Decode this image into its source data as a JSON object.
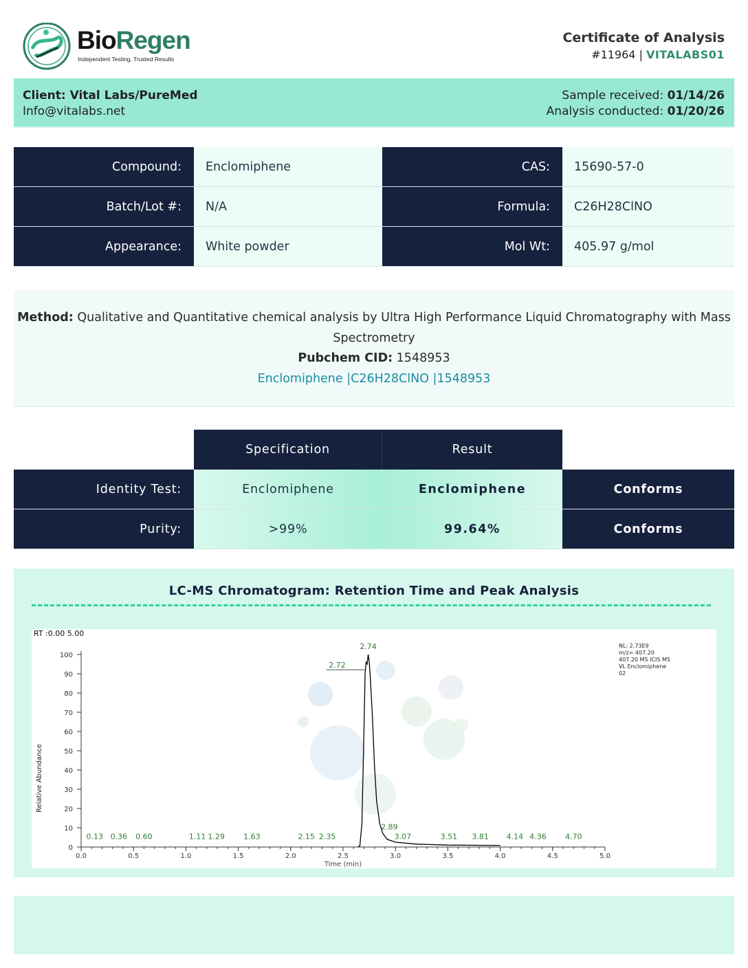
{
  "header": {
    "brand_part1": "Bio",
    "brand_part2": "Regen",
    "tagline": "Independent Testing, Trusted Results",
    "title": "Certificate of Analysis",
    "cert_number": "#11964",
    "separator": "|",
    "lab_code": "VITALABS01"
  },
  "client": {
    "name": "Client: Vital Labs/PureMed",
    "email": "Info@vitalabs.net",
    "received_label": "Sample received:",
    "received": "01/14/26",
    "conducted_label": "Analysis conducted:",
    "conducted": "01/20/26"
  },
  "compound_info": [
    {
      "k1": "Compound:",
      "v1": "Enclomiphene",
      "k2": "CAS:",
      "v2": "15690-57-0"
    },
    {
      "k1": "Batch/Lot #:",
      "v1": "N/A",
      "k2": "Formula:",
      "v2": "C26H28ClNO"
    },
    {
      "k1": "Appearance:",
      "v1": "White powder",
      "k2": "Mol Wt:",
      "v2": "405.97 g/mol"
    }
  ],
  "method": {
    "label": "Method:",
    "text": "Qualitative and Quantitative chemical analysis by Ultra High Performance Liquid Chromatography with Mass Spectrometry",
    "pubchem_label": "Pubchem CID:",
    "pubchem": "1548953",
    "link": "Enclomiphene |C26H28ClNO |1548953"
  },
  "results": {
    "headers": [
      "Specification",
      "Result"
    ],
    "rows": [
      {
        "label": "Identity Test:",
        "spec": "Enclomiphene",
        "result": "Enclomiphene",
        "status": "Conforms"
      },
      {
        "label": "Purity:",
        "spec": ">99%",
        "result": "99.64%",
        "status": "Conforms"
      }
    ]
  },
  "chart_section_title": "LC-MS Chromatogram: Retention Time and Peak Analysis",
  "chart_data": {
    "type": "line",
    "rt_range_label": "RT :0.00 5.00",
    "xlabel": "Time (min)",
    "ylabel": "Relative Abundance",
    "xlim": [
      0,
      5
    ],
    "ylim": [
      0,
      100
    ],
    "xticks": [
      "0.0",
      "0.5",
      "1.0",
      "1.5",
      "2.0",
      "2.5",
      "3.0",
      "3.5",
      "4.0",
      "4.5",
      "5.0"
    ],
    "yticks": [
      "0",
      "10",
      "20",
      "30",
      "40",
      "50",
      "60",
      "70",
      "80",
      "90",
      "100"
    ],
    "info": [
      "NL: 2.73E9",
      "m/z= 407.20",
      "407.20 MS  ICIS  MS",
      "VL Enclomiphene",
      "02"
    ],
    "series": [
      {
        "points": [
          [
            2.64,
            0
          ],
          [
            2.66,
            0.5
          ],
          [
            2.68,
            12
          ],
          [
            2.7,
            62
          ],
          [
            2.71,
            90
          ],
          [
            2.72,
            96
          ],
          [
            2.73,
            95
          ],
          [
            2.74,
            100
          ],
          [
            2.75,
            96
          ],
          [
            2.76,
            88
          ],
          [
            2.78,
            68
          ],
          [
            2.8,
            42
          ],
          [
            2.82,
            24
          ],
          [
            2.85,
            12
          ],
          [
            2.88,
            7
          ],
          [
            2.92,
            4
          ],
          [
            3.0,
            2.5
          ],
          [
            3.2,
            1.5
          ],
          [
            3.5,
            1
          ],
          [
            4.0,
            0.8
          ]
        ]
      }
    ],
    "peak_labels": [
      {
        "rt": "0.13",
        "x": 0.13,
        "y": 2
      },
      {
        "rt": "0.36",
        "x": 0.36,
        "y": 2
      },
      {
        "rt": "0.60",
        "x": 0.6,
        "y": 2
      },
      {
        "rt": "1.11",
        "x": 1.11,
        "y": 2
      },
      {
        "rt": "1.29",
        "x": 1.29,
        "y": 2
      },
      {
        "rt": "1.63",
        "x": 1.63,
        "y": 2
      },
      {
        "rt": "2.15",
        "x": 2.15,
        "y": 2
      },
      {
        "rt": "2.35",
        "x": 2.35,
        "y": 2
      },
      {
        "rt": "2.72",
        "x": 2.72,
        "y": 96
      },
      {
        "rt": "2.74",
        "x": 2.74,
        "y": 100
      },
      {
        "rt": "2.89",
        "x": 2.89,
        "y": 7
      },
      {
        "rt": "3.07",
        "x": 3.07,
        "y": 2
      },
      {
        "rt": "3.51",
        "x": 3.51,
        "y": 2
      },
      {
        "rt": "3.81",
        "x": 3.81,
        "y": 2
      },
      {
        "rt": "4.14",
        "x": 4.14,
        "y": 2
      },
      {
        "rt": "4.36",
        "x": 4.36,
        "y": 2
      },
      {
        "rt": "4.70",
        "x": 4.7,
        "y": 2
      }
    ],
    "colors": {
      "trace": "#000000",
      "peak_label": "#2e7d32",
      "axis": "#333333"
    }
  }
}
